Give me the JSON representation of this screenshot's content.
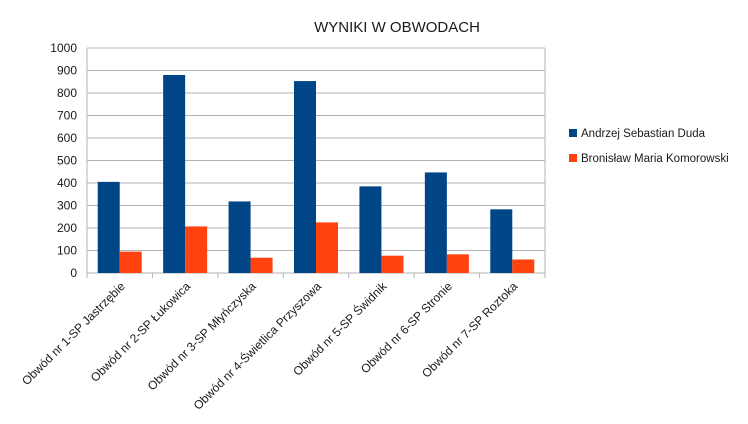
{
  "chart_data": {
    "type": "bar",
    "title": "WYNIKI W OBWODACH",
    "xlabel": "",
    "ylabel": "",
    "ylim": [
      0,
      1000
    ],
    "yticks": [
      0,
      100,
      200,
      300,
      400,
      500,
      600,
      700,
      800,
      900,
      1000
    ],
    "grid": true,
    "legend_position": "right",
    "categories": [
      "Obwód nr 1-SP Jastrzębie",
      "Obwód nr 2-SP Łukowica",
      "Obwód nr 3-SP Młyńczyska",
      "Obwód nr 4-Świetlica Przyszowa",
      "Obwód nr 5-SP Świdnik",
      "Obwód nr 6-SP Stronie",
      "Obwód nr 7-SP Roztoka"
    ],
    "series": [
      {
        "name": "Andrzej Sebastian Duda",
        "color": "#004586",
        "values": [
          405,
          880,
          318,
          853,
          385,
          447,
          283
        ]
      },
      {
        "name": "Bronisław Maria Komorowski",
        "color": "#ff420e",
        "values": [
          95,
          207,
          68,
          225,
          77,
          83,
          60
        ]
      }
    ]
  }
}
